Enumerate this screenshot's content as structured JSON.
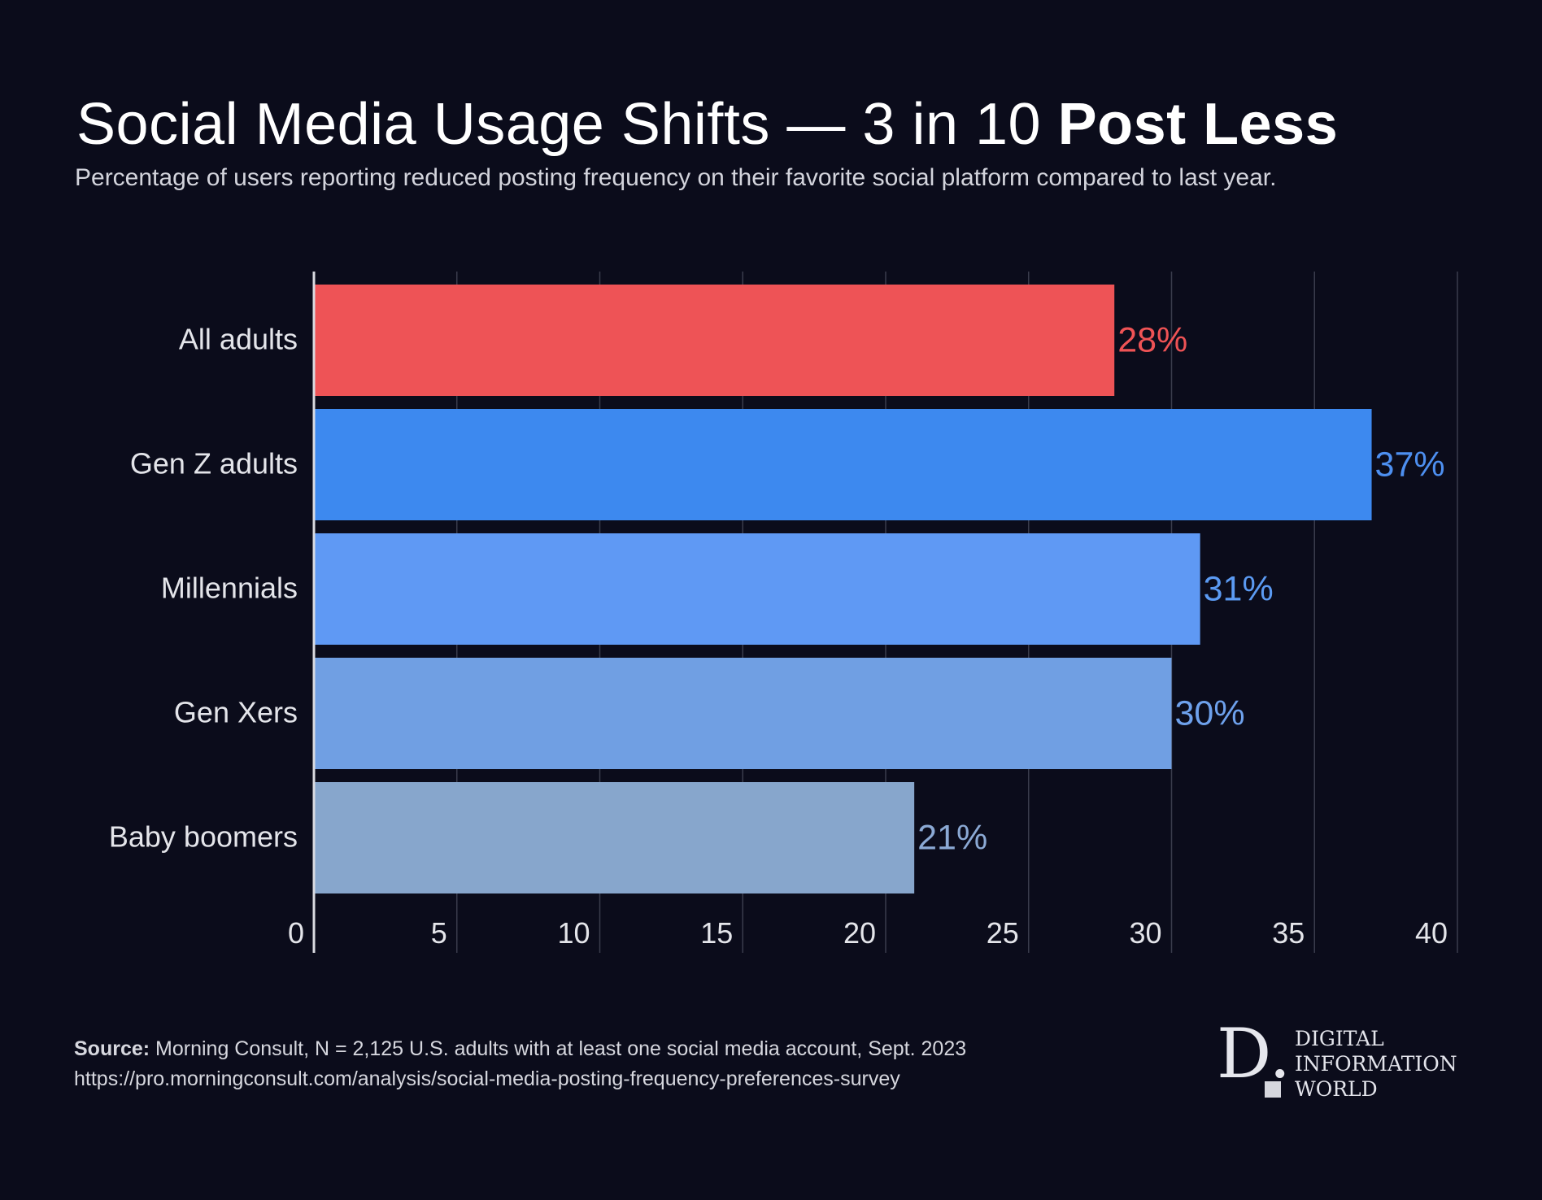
{
  "title": {
    "main": "Social Media Usage Shifts — 3 in 10 ",
    "emphasis": "Post Less"
  },
  "subtitle": "Percentage of users reporting reduced posting frequency on their favorite social platform compared to last year.",
  "chart_data": {
    "type": "bar",
    "orientation": "horizontal",
    "categories": [
      "All adults",
      "Gen Z adults",
      "Millennials",
      "Gen Xers",
      "Baby boomers"
    ],
    "values": [
      28,
      37,
      31,
      30,
      21
    ],
    "value_labels": [
      "28%",
      "37%",
      "31%",
      "30%",
      "21%"
    ],
    "bar_colors": [
      "#ee5356",
      "#3d89ef",
      "#5f99f4",
      "#709fe3",
      "#87a6cc"
    ],
    "label_colors": [
      "#ef5355",
      "#4d8ff0",
      "#5b9af2",
      "#6ea1ec",
      "#8ba9d4"
    ],
    "xlim": [
      0,
      40
    ],
    "xticks": [
      0,
      5,
      10,
      15,
      20,
      25,
      30,
      35,
      40
    ],
    "xtick_labels": [
      "0",
      "5",
      "10",
      "15",
      "20",
      "25",
      "30",
      "35",
      "40"
    ],
    "grid": true,
    "title": "",
    "xlabel": "",
    "ylabel": ""
  },
  "source": {
    "label": "Source:",
    "text": " Morning Consult, N = 2,125 U.S. adults with at least one social media account, Sept. 2023",
    "url": "https://pro.morningconsult.com/analysis/social-media-posting-frequency-preferences-survey"
  },
  "logo": {
    "letter": "D.",
    "line1": "DIGITAL",
    "line2": "INFORMATION",
    "line3": "WORLD"
  }
}
